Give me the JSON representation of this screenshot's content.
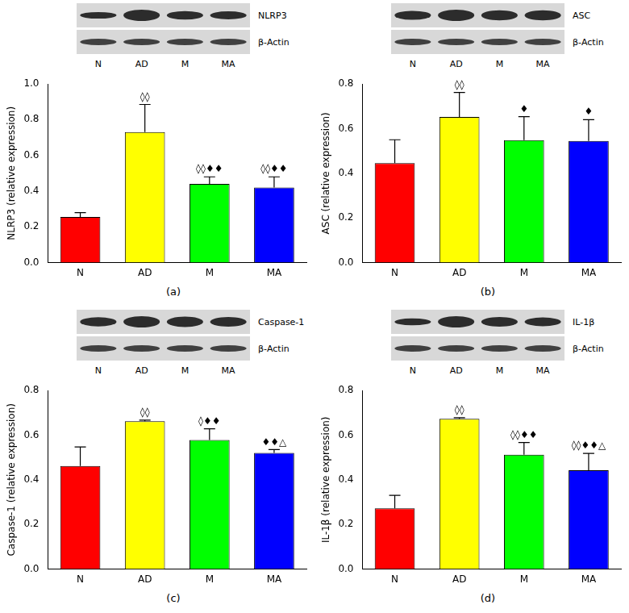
{
  "chart_data": [
    {
      "type": "bar",
      "label": "(a)",
      "blot": {
        "labels": [
          "NLRP3",
          "β-Actin"
        ]
      },
      "categories": [
        "N",
        "AD",
        "M",
        "MA"
      ],
      "values": [
        0.255,
        0.73,
        0.44,
        0.42
      ],
      "errors": [
        0.025,
        0.155,
        0.04,
        0.06
      ],
      "colors": [
        "#ff0000",
        "#ffff00",
        "#00ff00",
        "#0000ff"
      ],
      "y_label": "NLRP3 (relative expression)",
      "ylim": [
        0,
        1
      ],
      "yticks": [
        {
          "value": 0,
          "label": "0.0"
        },
        0.2,
        0.4,
        0.6,
        0.8,
        {
          "value": 1,
          "label": "1.0"
        }
      ],
      "annotations": [
        null,
        "◊◊",
        "◊◊♦♦",
        "◊◊♦♦"
      ],
      "grid": false
    },
    {
      "type": "bar",
      "label": "(b)",
      "blot": {
        "labels": [
          "ASC",
          "β-Actin"
        ]
      },
      "categories": [
        "N",
        "AD",
        "M",
        "MA"
      ],
      "values": [
        0.445,
        0.652,
        0.548,
        0.545
      ],
      "errors": [
        0.105,
        0.11,
        0.105,
        0.095
      ],
      "colors": [
        "#ff0000",
        "#ffff00",
        "#00ff00",
        "#0000ff"
      ],
      "y_label": "ASC (relative expression)",
      "ylim": [
        0,
        0.8
      ],
      "yticks": [
        {
          "value": 0,
          "label": "0.0"
        },
        0.2,
        0.4,
        0.6,
        0.8
      ],
      "annotations": [
        null,
        "◊◊",
        "♦",
        "♦"
      ],
      "grid": false
    },
    {
      "type": "bar",
      "label": "(c)",
      "blot": {
        "labels": [
          "Caspase-1",
          "β-Actin"
        ]
      },
      "categories": [
        "N",
        "AD",
        "M",
        "MA"
      ],
      "values": [
        0.462,
        0.662,
        0.578,
        0.52
      ],
      "errors": [
        0.085,
        0.005,
        0.05,
        0.015
      ],
      "colors": [
        "#ff0000",
        "#ffff00",
        "#00ff00",
        "#0000ff"
      ],
      "y_label": "Caspase-1 (relative expression)",
      "ylim": [
        0,
        0.8
      ],
      "yticks": [
        {
          "value": 0,
          "label": "0.0"
        },
        0.2,
        0.4,
        0.6,
        0.8
      ],
      "annotations": [
        null,
        "◊◊",
        "◊♦♦",
        "♦♦△"
      ],
      "grid": false
    },
    {
      "type": "bar",
      "label": "(d)",
      "blot": {
        "labels": [
          "IL-1β",
          "β-Actin"
        ]
      },
      "categories": [
        "N",
        "AD",
        "M",
        "MA"
      ],
      "values": [
        0.272,
        0.673,
        0.512,
        0.443
      ],
      "errors": [
        0.058,
        0.005,
        0.055,
        0.075
      ],
      "colors": [
        "#ff0000",
        "#ffff00",
        "#00ff00",
        "#0000ff"
      ],
      "y_label": "IL-1β (relative expression)",
      "ylim": [
        0,
        0.8
      ],
      "yticks": [
        {
          "value": 0,
          "label": "0.0"
        },
        0.2,
        0.4,
        0.6,
        0.8
      ],
      "annotations": [
        null,
        "◊◊",
        "◊◊♦♦",
        "◊◊♦♦△"
      ],
      "grid": false
    }
  ]
}
